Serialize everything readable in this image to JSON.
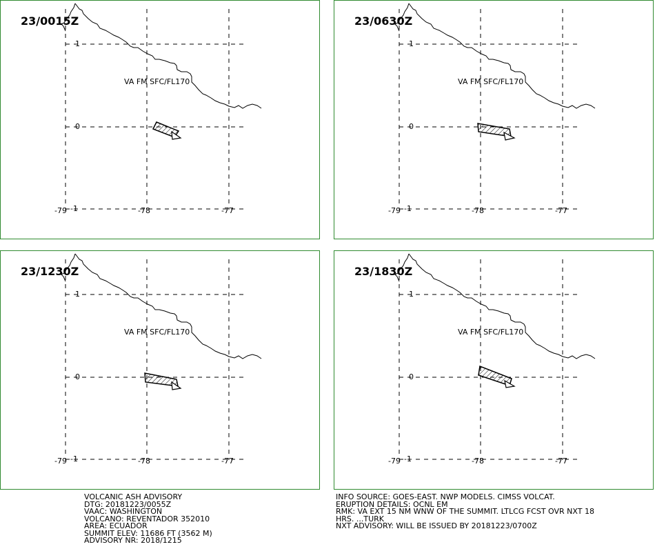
{
  "panels": [
    {
      "time": "23/0015Z",
      "label": "VA FM SFC/FL170",
      "lat_ticks": [
        "1",
        "0",
        "-1"
      ],
      "lon_ticks": [
        "-79",
        "-78",
        "-77"
      ]
    },
    {
      "time": "23/0630Z",
      "label": "VA FM SFC/FL170",
      "lat_ticks": [
        "1",
        "0",
        "-1"
      ],
      "lon_ticks": [
        "-79",
        "-78",
        "-77"
      ]
    },
    {
      "time": "23/1230Z",
      "label": "VA FM SFC/FL170",
      "lat_ticks": [
        "1",
        "0",
        "-1"
      ],
      "lon_ticks": [
        "-79",
        "-78",
        "-77"
      ]
    },
    {
      "time": "23/1830Z",
      "label": "VA FM SFC/FL170",
      "lat_ticks": [
        "1",
        "0",
        "-1"
      ],
      "lon_ticks": [
        "-79",
        "-78",
        "-77"
      ]
    }
  ],
  "advisory_left": [
    "VOLCANIC ASH ADVISORY",
    "DTG: 20181223/0055Z",
    "VAAC: WASHINGTON",
    "VOLCANO: REVENTADOR 352010",
    "AREA: ECUADOR",
    "SUMMIT ELEV: 11686 FT (3562 M)",
    "ADVISORY NR: 2018/1215"
  ],
  "advisory_right": [
    "INFO SOURCE: GOES-EAST. NWP MODELS. CIMSS VOLCAT.",
    "ERUPTION DETAILS: OCNL EM",
    "RMK: VA EXT 15 NM WNW OF THE SUMMIT. LTLCG FCST OVR NXT 18",
    "HRS. ...TURK",
    "NXT ADVISORY: WILL BE ISSUED BY 20181223/0700Z"
  ],
  "colors": {
    "border": "#2f8a2f",
    "lines": "#000000",
    "background": "#ffffff"
  }
}
